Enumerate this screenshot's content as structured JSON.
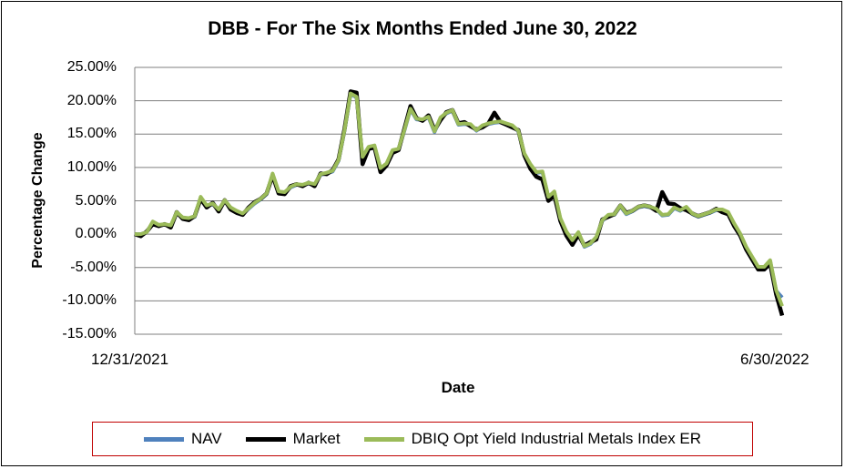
{
  "chart_data": {
    "type": "line",
    "title": "DBB - For The Six Months Ended June 30, 2022",
    "xlabel": "Date",
    "ylabel": "Percentage Change",
    "x_start_label": "12/31/2021",
    "x_end_label": "6/30/2022",
    "ylim": [
      -15,
      25
    ],
    "yticks": [
      "25.00%",
      "20.00%",
      "15.00%",
      "10.00%",
      "5.00%",
      "0.00%",
      "-5.00%",
      "-10.00%",
      "-15.00%"
    ],
    "ytick_values": [
      25,
      20,
      15,
      10,
      5,
      0,
      -5,
      -10,
      -15
    ],
    "grid": true,
    "legend": "bottom",
    "x": [
      0,
      2,
      4,
      6,
      8,
      10,
      12,
      14,
      16,
      18,
      20,
      22,
      24,
      26,
      28,
      30,
      32,
      34,
      36,
      38,
      40,
      42,
      44,
      46,
      48,
      50,
      52,
      54,
      56,
      58,
      60,
      62,
      64,
      66,
      68,
      70,
      72,
      74,
      76,
      78,
      80,
      82,
      84,
      86,
      88,
      90,
      92,
      94,
      96,
      98,
      100,
      102,
      104,
      106,
      108,
      110,
      112,
      114,
      116,
      118,
      120,
      122,
      124,
      126,
      128,
      130,
      132,
      134,
      136,
      138,
      140,
      142,
      144,
      146,
      148,
      150,
      152,
      154,
      156,
      158,
      160,
      162,
      164,
      166,
      168,
      170,
      172,
      174,
      176,
      178,
      180
    ],
    "series": [
      {
        "name": "NAV",
        "color": "#4f81bd",
        "values": [
          0.0,
          0.0,
          0.3,
          1.8,
          1.3,
          1.4,
          1.2,
          3.2,
          2.4,
          2.3,
          2.6,
          5.5,
          4.2,
          4.5,
          3.6,
          5.0,
          3.9,
          3.4,
          3.0,
          3.8,
          4.6,
          5.2,
          6.0,
          9.0,
          6.3,
          6.2,
          7.0,
          7.4,
          7.3,
          7.6,
          7.4,
          8.9,
          9.1,
          9.4,
          11.0,
          15.5,
          21.0,
          20.5,
          11.5,
          13.0,
          13.2,
          9.8,
          10.5,
          12.5,
          12.7,
          15.6,
          18.7,
          17.2,
          17.1,
          17.5,
          15.3,
          17.4,
          18.1,
          18.5,
          16.4,
          16.5,
          16.4,
          15.5,
          16.2,
          16.5,
          16.7,
          16.8,
          16.5,
          16.2,
          15.4,
          12.0,
          10.4,
          9.2,
          9.3,
          5.5,
          6.3,
          2.3,
          0.3,
          -1.0,
          0.2,
          -1.9,
          -1.5,
          -0.5,
          2.0,
          2.8,
          2.9,
          4.2,
          3.0,
          3.4,
          4.0,
          4.2,
          4.0,
          3.7,
          2.8,
          2.9,
          3.9
        ]
      },
      {
        "name": "Market",
        "color": "#000000",
        "values": [
          0.0,
          -0.3,
          0.4,
          1.5,
          1.2,
          1.5,
          1.0,
          3.3,
          2.3,
          2.1,
          2.7,
          5.3,
          4.0,
          4.7,
          3.4,
          5.1,
          3.7,
          3.2,
          2.9,
          4.0,
          4.8,
          5.3,
          6.1,
          8.8,
          6.1,
          6.0,
          7.2,
          7.5,
          7.2,
          7.7,
          7.2,
          9.1,
          9.0,
          9.6,
          11.2,
          15.8,
          21.4,
          21.2,
          10.5,
          12.8,
          13.0,
          9.3,
          10.3,
          12.2,
          12.6,
          15.9,
          19.2,
          17.4,
          17.0,
          17.8,
          15.6,
          17.1,
          18.3,
          18.6,
          16.6,
          16.8,
          16.2,
          15.7,
          16.0,
          16.6,
          18.2,
          16.8,
          16.4,
          16.0,
          15.6,
          11.8,
          9.8,
          8.6,
          8.2,
          5.0,
          5.8,
          2.0,
          -0.2,
          -1.6,
          -0.1,
          -1.7,
          -1.2,
          -0.8,
          2.2,
          2.6,
          3.0,
          4.3,
          3.2,
          3.5,
          4.1,
          4.3,
          4.1,
          3.5,
          6.3,
          4.6,
          4.5
        ]
      },
      {
        "name": "DBIQ Opt Yield Industrial Metals Index ER",
        "color": "#9bbb59",
        "values": [
          0.0,
          0.0,
          0.3,
          1.9,
          1.4,
          1.5,
          1.3,
          3.3,
          2.5,
          2.4,
          2.7,
          5.6,
          4.3,
          4.6,
          3.7,
          5.1,
          4.0,
          3.5,
          3.1,
          3.9,
          4.7,
          5.3,
          6.1,
          9.1,
          6.4,
          6.3,
          7.1,
          7.5,
          7.4,
          7.7,
          7.5,
          9.0,
          9.2,
          9.5,
          11.1,
          15.6,
          21.1,
          20.6,
          11.6,
          13.1,
          13.3,
          9.9,
          10.6,
          12.6,
          12.8,
          15.7,
          18.8,
          17.3,
          17.2,
          17.6,
          15.4,
          17.5,
          18.2,
          18.6,
          16.5,
          16.6,
          16.5,
          15.6,
          16.3,
          16.6,
          16.8,
          16.9,
          16.6,
          16.3,
          15.5,
          12.1,
          10.5,
          9.3,
          9.4,
          5.6,
          6.4,
          2.4,
          0.4,
          -0.9,
          0.3,
          -1.8,
          -1.4,
          -0.4,
          2.1,
          2.9,
          3.0,
          4.3,
          3.1,
          3.5,
          4.1,
          4.3,
          4.1,
          3.8,
          2.9,
          3.0,
          4.0
        ]
      }
    ],
    "x_tail": [
      182,
      184,
      186,
      188,
      190,
      192,
      194,
      196,
      198,
      200,
      202,
      204,
      206,
      208,
      210,
      212,
      214,
      216
    ],
    "series_tail": [
      [
        3.5,
        4.0,
        3.0,
        2.6,
        2.9,
        3.2,
        3.6,
        3.6,
        3.2,
        1.5,
        0.0,
        -2.0,
        -3.5,
        -5.0,
        -5.0,
        -4.0,
        -8.5,
        -9.5
      ],
      [
        3.9,
        3.6,
        3.1,
        2.7,
        3.0,
        3.3,
        3.8,
        3.3,
        3.0,
        1.2,
        -0.2,
        -2.3,
        -3.8,
        -5.3,
        -5.3,
        -4.4,
        -9.0,
        -12.2
      ],
      [
        3.6,
        4.1,
        3.1,
        2.7,
        3.0,
        3.3,
        3.7,
        3.7,
        3.3,
        1.6,
        0.1,
        -1.9,
        -3.4,
        -4.9,
        -4.9,
        -3.9,
        -8.4,
        -10.8
      ]
    ]
  }
}
